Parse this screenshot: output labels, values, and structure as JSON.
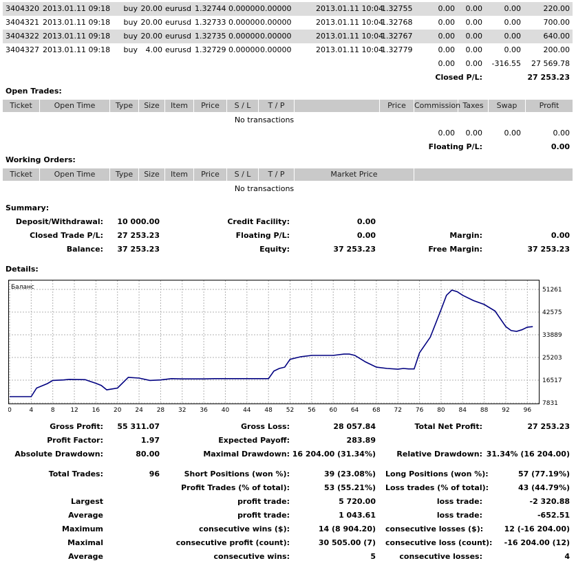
{
  "closed_trades": [
    {
      "ticket": "3404320",
      "open_time": "2013.01.11 09:18",
      "type": "buy",
      "size": "20.00",
      "item": "eurusd",
      "price": "1.32744",
      "sl": "0.00000",
      "tp": "0.00000",
      "close_time": "2013.01.11 10:04",
      "close_price": "1.32755",
      "commission": "0.00",
      "taxes": "0.00",
      "swap": "0.00",
      "profit": "220.00"
    },
    {
      "ticket": "3404321",
      "open_time": "2013.01.11 09:18",
      "type": "buy",
      "size": "20.00",
      "item": "eurusd",
      "price": "1.32733",
      "sl": "0.00000",
      "tp": "0.00000",
      "close_time": "2013.01.11 10:04",
      "close_price": "1.32768",
      "commission": "0.00",
      "taxes": "0.00",
      "swap": "0.00",
      "profit": "700.00"
    },
    {
      "ticket": "3404322",
      "open_time": "2013.01.11 09:18",
      "type": "buy",
      "size": "20.00",
      "item": "eurusd",
      "price": "1.32735",
      "sl": "0.00000",
      "tp": "0.00000",
      "close_time": "2013.01.11 10:04",
      "close_price": "1.32767",
      "commission": "0.00",
      "taxes": "0.00",
      "swap": "0.00",
      "profit": "640.00"
    },
    {
      "ticket": "3404327",
      "open_time": "2013.01.11 09:18",
      "type": "buy",
      "size": "4.00",
      "item": "eurusd",
      "price": "1.32729",
      "sl": "0.00000",
      "tp": "0.00000",
      "close_time": "2013.01.11 10:04",
      "close_price": "1.32779",
      "commission": "0.00",
      "taxes": "0.00",
      "swap": "0.00",
      "profit": "200.00"
    }
  ],
  "closed_totals": {
    "commission": "0.00",
    "taxes": "0.00",
    "swap": "-316.55",
    "profit": "27 569.78"
  },
  "closed_pl": {
    "label": "Closed P/L:",
    "value": "27 253.23"
  },
  "open_trades": {
    "title": "Open Trades:",
    "headers": {
      "ticket": "Ticket",
      "open_time": "Open Time",
      "type": "Type",
      "size": "Size",
      "item": "Item",
      "price": "Price",
      "sl": "S / L",
      "tp": "T / P",
      "price2": "Price",
      "commission": "Commission",
      "taxes": "Taxes",
      "swap": "Swap",
      "profit": "Profit"
    },
    "empty": "No transactions",
    "totals": {
      "commission": "0.00",
      "taxes": "0.00",
      "swap": "0.00",
      "profit": "0.00"
    },
    "floating_label": "Floating P/L:",
    "floating_value": "0.00"
  },
  "working_orders": {
    "title": "Working Orders:",
    "headers": {
      "ticket": "Ticket",
      "open_time": "Open Time",
      "type": "Type",
      "size": "Size",
      "item": "Item",
      "price": "Price",
      "sl": "S / L",
      "tp": "T / P",
      "market_price": "Market Price"
    },
    "empty": "No transactions"
  },
  "summary": {
    "title": "Summary:",
    "deposit_label": "Deposit/Withdrawal:",
    "deposit_value": "10 000.00",
    "credit_label": "Credit Facility:",
    "credit_value": "0.00",
    "closed_label": "Closed Trade P/L:",
    "closed_value": "27 253.23",
    "floating_label": "Floating P/L:",
    "floating_value": "0.00",
    "margin_label": "Margin:",
    "margin_value": "0.00",
    "balance_label": "Balance:",
    "balance_value": "37 253.23",
    "equity_label": "Equity:",
    "equity_value": "37 253.23",
    "free_margin_label": "Free Margin:",
    "free_margin_value": "37 253.23"
  },
  "details_title": "Details:",
  "chart_data": {
    "type": "line",
    "title": "Баланс",
    "x_ticks": [
      "0",
      "4",
      "8",
      "12",
      "16",
      "20",
      "24",
      "28",
      "32",
      "36",
      "40",
      "44",
      "48",
      "52",
      "56",
      "60",
      "64",
      "68",
      "72",
      "76",
      "80",
      "84",
      "88",
      "92",
      "96"
    ],
    "y_ticks": [
      "51261",
      "42575",
      "33889",
      "25203",
      "16517",
      "7831"
    ],
    "xlim": [
      0,
      98
    ],
    "ylim": [
      7831,
      51261
    ],
    "grid": true,
    "series": [
      {
        "color": "#000080",
        "x": [
          0,
          4,
          5,
          7,
          8,
          10,
          11,
          14,
          15,
          16,
          17,
          18,
          20,
          22,
          24,
          26,
          28,
          30,
          32,
          34,
          36,
          38,
          40,
          42,
          44,
          47,
          48,
          49,
          50,
          51,
          52,
          54,
          56,
          58,
          60,
          62,
          63,
          64,
          66,
          68,
          70,
          72,
          73,
          74,
          75,
          76,
          78,
          80,
          81,
          82,
          83,
          84,
          86,
          88,
          90,
          92,
          93,
          94,
          95,
          96,
          97
        ],
        "y": [
          10200,
          10200,
          13500,
          15200,
          16400,
          16600,
          16800,
          16700,
          16000,
          15300,
          14500,
          12800,
          13500,
          17600,
          17300,
          16400,
          16600,
          17100,
          17000,
          17000,
          17000,
          17100,
          17100,
          17100,
          17100,
          17100,
          17100,
          20000,
          21000,
          21500,
          24500,
          25500,
          26000,
          26000,
          26000,
          26500,
          26500,
          26000,
          23500,
          21500,
          21000,
          20700,
          21000,
          20800,
          20800,
          27000,
          33000,
          43500,
          49000,
          51000,
          50400,
          49000,
          47000,
          45500,
          43000,
          37000,
          35500,
          35200,
          35800,
          36800,
          37000
        ]
      }
    ]
  },
  "stats": {
    "gross_profit_label": "Gross Profit:",
    "gross_profit": "55 311.07",
    "gross_loss_label": "Gross Loss:",
    "gross_loss": "28 057.84",
    "total_net_label": "Total Net Profit:",
    "total_net": "27 253.23",
    "profit_factor_label": "Profit Factor:",
    "profit_factor": "1.97",
    "expected_payoff_label": "Expected Payoff:",
    "expected_payoff": "283.89",
    "abs_dd_label": "Absolute Drawdown:",
    "abs_dd": "80.00",
    "max_dd_label": "Maximal Drawdown:",
    "max_dd": "16 204.00 (31.34%)",
    "rel_dd_label": "Relative Drawdown:",
    "rel_dd": "31.34% (16 204.00)",
    "total_trades_label": "Total Trades:",
    "total_trades": "96",
    "short_label": "Short Positions (won %):",
    "short": "39 (23.08%)",
    "long_label": "Long Positions (won %):",
    "long": "57 (77.19%)",
    "profit_trades_label": "Profit Trades (% of total):",
    "profit_trades": "53 (55.21%)",
    "loss_trades_label": "Loss trades (% of total):",
    "loss_trades": "43 (44.79%)",
    "largest_label": "Largest",
    "largest_profit_label": "profit trade:",
    "largest_profit": "5 720.00",
    "largest_loss_label": "loss trade:",
    "largest_loss": "-2 320.88",
    "average_label": "Average",
    "avg_profit_label": "profit trade:",
    "avg_profit": "1 043.61",
    "avg_loss_label": "loss trade:",
    "avg_loss": "-652.51",
    "maximum_label": "Maximum",
    "max_wins_label": "consecutive wins ($):",
    "max_wins": "14 (8 904.20)",
    "max_losses_label": "consecutive losses ($):",
    "max_losses": "12 (-16 204.00)",
    "maximal_label": "Maximal",
    "maximal_profit_label": "consecutive profit (count):",
    "maximal_profit": "30 505.00 (7)",
    "maximal_loss_label": "consecutive loss (count):",
    "maximal_loss": "-16 204.00 (12)",
    "average2_label": "Average",
    "avg_wins_label": "consecutive wins:",
    "avg_wins": "5",
    "avg_losses_label": "consecutive losses:",
    "avg_losses": "4"
  }
}
